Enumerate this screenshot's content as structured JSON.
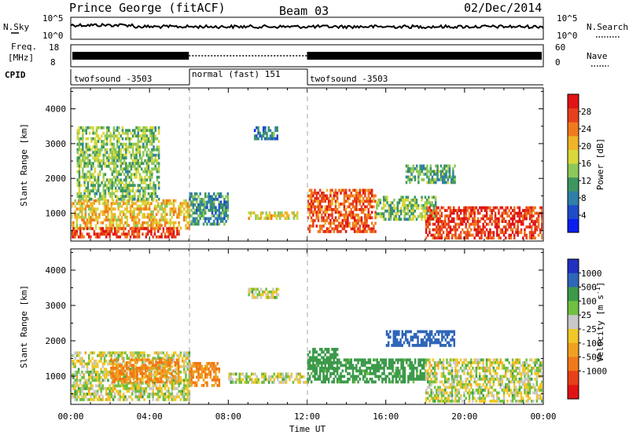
{
  "header": {
    "station": "Prince George (fitACF)",
    "beam": "Beam 03",
    "date": "02/Dec/2014"
  },
  "top_panels": {
    "nsky_label": "N.Sky",
    "nsearch_label": "N.Search",
    "nsky_ticks": [
      "10^5",
      "10^0"
    ],
    "nsearch_ticks": [
      "10^5",
      "10^0"
    ],
    "freq_label_1": "Freq.",
    "freq_label_2": "[MHz]",
    "freq_ticks": [
      "18",
      "8"
    ],
    "nave_label": "Nave",
    "nave_ticks": [
      "60",
      "0"
    ],
    "cpid_label": "CPID",
    "cpid_segments": [
      {
        "label": "twofsound -3503",
        "start_ut": 0,
        "end_ut": 6
      },
      {
        "label": "normal (fast) 151",
        "start_ut": 6,
        "end_ut": 12
      },
      {
        "label": "twofsound -3503",
        "start_ut": 12,
        "end_ut": 24
      }
    ]
  },
  "chart_data": [
    {
      "type": "heatmap",
      "title": "",
      "xlabel": "",
      "ylabel": "Slant Range [km]",
      "xlim": [
        0,
        24
      ],
      "ylim": [
        200,
        4600
      ],
      "y_ticks": [
        "1000",
        "2000",
        "3000",
        "4000"
      ],
      "colorbar": {
        "label": "Power [dB]",
        "range": [
          0,
          32
        ],
        "ticks": [
          "4",
          "8",
          "12",
          "16",
          "20",
          "24",
          "28"
        ],
        "colors": [
          "#0a1ef0",
          "#1e4cc8",
          "#2f7fa8",
          "#3d9660",
          "#8cc85a",
          "#d8d83c",
          "#f0b428",
          "#f07a1e",
          "#e8401e",
          "#e01414"
        ]
      },
      "regions": [
        {
          "x0": 0.0,
          "x1": 6.0,
          "y0": 600,
          "y1": 1400,
          "value": 20
        },
        {
          "x0": 0.0,
          "x1": 5.5,
          "y0": 300,
          "y1": 600,
          "value": 28
        },
        {
          "x0": 0.3,
          "x1": 4.5,
          "y0": 1400,
          "y1": 3500,
          "value": 14
        },
        {
          "x0": 6.0,
          "x1": 8.0,
          "y0": 700,
          "y1": 1600,
          "value": 10
        },
        {
          "x0": 9.0,
          "x1": 11.5,
          "y0": 850,
          "y1": 1050,
          "value": 18
        },
        {
          "x0": 9.3,
          "x1": 10.5,
          "y0": 3150,
          "y1": 3500,
          "value": 8
        },
        {
          "x0": 12.0,
          "x1": 15.5,
          "y0": 500,
          "y1": 1700,
          "value": 26
        },
        {
          "x0": 15.5,
          "x1": 18.5,
          "y0": 800,
          "y1": 1500,
          "value": 14
        },
        {
          "x0": 17.0,
          "x1": 19.5,
          "y0": 1900,
          "y1": 2400,
          "value": 12
        },
        {
          "x0": 18.0,
          "x1": 24.0,
          "y0": 300,
          "y1": 1200,
          "value": 28
        }
      ]
    },
    {
      "type": "heatmap",
      "title": "",
      "xlabel": "Time UT",
      "ylabel": "Slant Range [km]",
      "xlim": [
        0,
        24
      ],
      "ylim": [
        200,
        4600
      ],
      "x_ticks": [
        "00:00",
        "04:00",
        "08:00",
        "12:00",
        "16:00",
        "20:00",
        "00:00"
      ],
      "y_ticks": [
        "1000",
        "2000",
        "3000",
        "4000"
      ],
      "colorbar": {
        "label": "Velocity [m s^-1]",
        "tick_values": [
          1000,
          500,
          100,
          25,
          -25,
          -100,
          -500,
          -1000
        ],
        "ticks": [
          "1000",
          "500",
          "100",
          "25",
          "-25",
          "-100",
          "-500",
          "-1000"
        ],
        "colors": [
          "#2030c0",
          "#2f66b8",
          "#3c9a4a",
          "#70c040",
          "#c8c8c8",
          "#f0c828",
          "#f0a020",
          "#f07818",
          "#e84018",
          "#e01414"
        ]
      },
      "regions": [
        {
          "x0": 0.0,
          "x1": 6.0,
          "y0": 300,
          "y1": 1700,
          "value": 0
        },
        {
          "x0": 2.0,
          "x1": 5.5,
          "y0": 800,
          "y1": 1500,
          "value": -500
        },
        {
          "x0": 6.0,
          "x1": 7.5,
          "y0": 700,
          "y1": 1400,
          "value": -500
        },
        {
          "x0": 8.0,
          "x1": 12.0,
          "y0": 800,
          "y1": 1100,
          "value": 0
        },
        {
          "x0": 12.0,
          "x1": 13.5,
          "y0": 1200,
          "y1": 1800,
          "value": 300
        },
        {
          "x0": 12.0,
          "x1": 18.0,
          "y0": 800,
          "y1": 1500,
          "value": 200
        },
        {
          "x0": 16.0,
          "x1": 19.5,
          "y0": 1900,
          "y1": 2300,
          "value": 800
        },
        {
          "x0": 18.0,
          "x1": 24.0,
          "y0": 300,
          "y1": 1500,
          "value": 0
        },
        {
          "x0": 9.0,
          "x1": 10.5,
          "y0": 3200,
          "y1": 3500,
          "value": 0
        }
      ]
    }
  ]
}
